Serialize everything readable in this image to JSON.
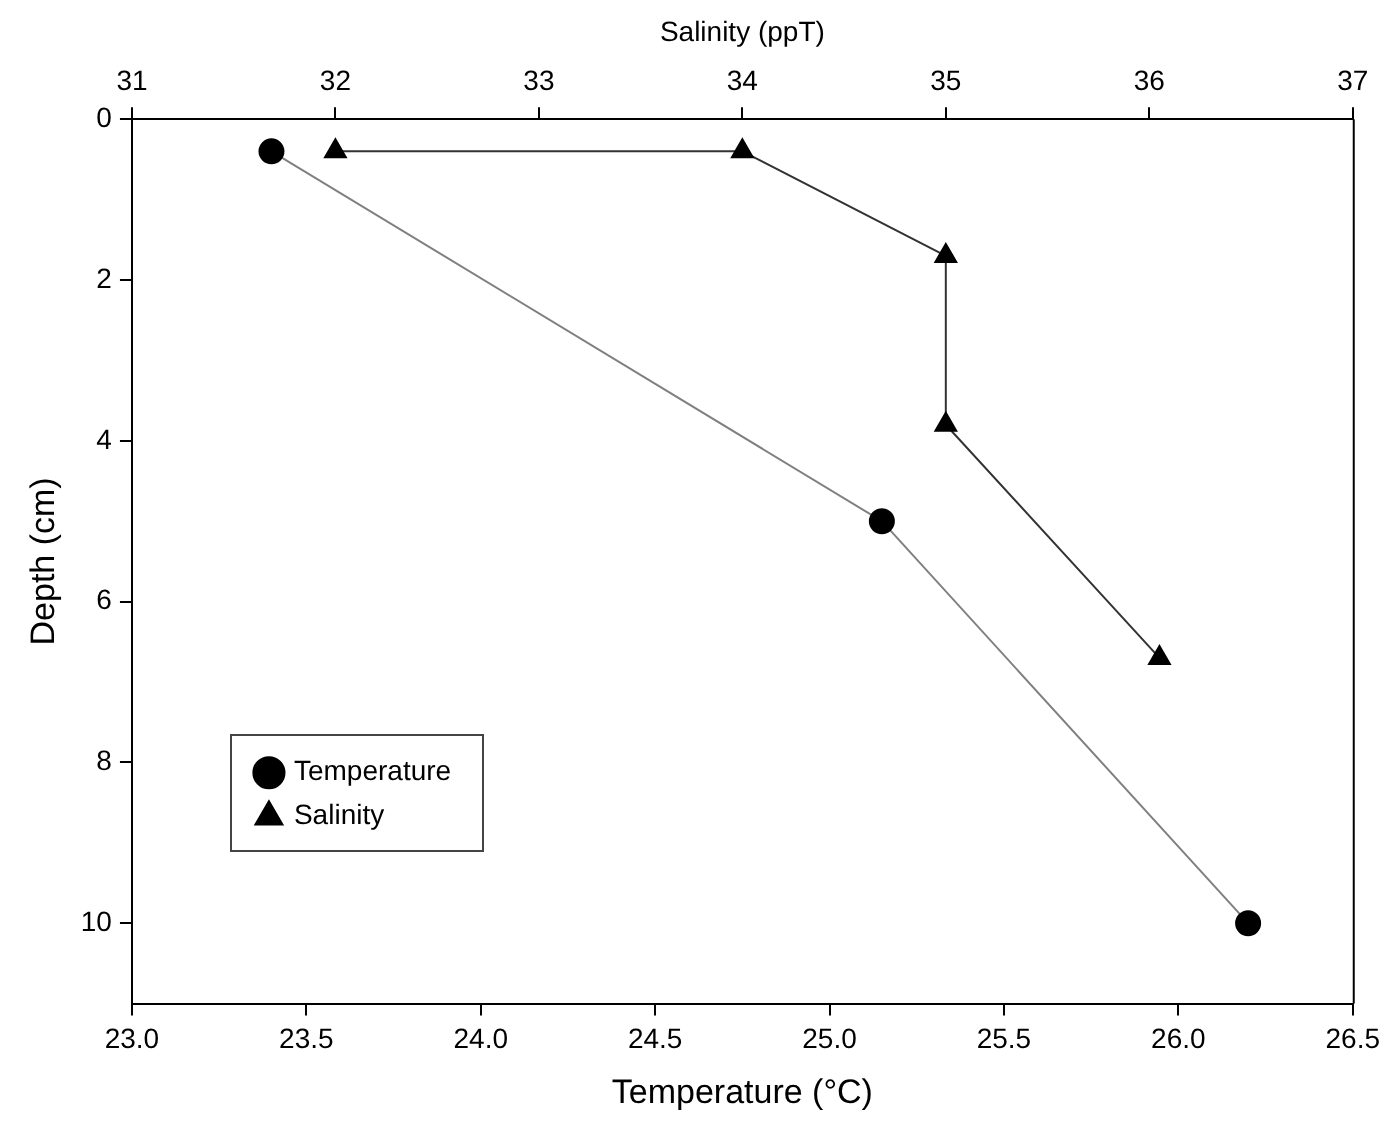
{
  "chart_data": {
    "type": "line",
    "xlabel": "Temperature (°C)",
    "x2label": "Salinity (ppT)",
    "ylabel": "Depth (cm)",
    "xlim": [
      23.0,
      26.5
    ],
    "xticks": [
      {
        "value": 23.0,
        "label": "23.0"
      },
      {
        "value": 23.5,
        "label": "23.5"
      },
      {
        "value": 24.0,
        "label": "24.0"
      },
      {
        "value": 24.5,
        "label": "24.5"
      },
      {
        "value": 25.0,
        "label": "25.0"
      },
      {
        "value": 25.5,
        "label": "25.5"
      },
      {
        "value": 26.0,
        "label": "26.0"
      },
      {
        "value": 26.5,
        "label": "26.5"
      }
    ],
    "x2lim": [
      31,
      37
    ],
    "x2ticks": [
      31,
      32,
      33,
      34,
      35,
      36,
      37
    ],
    "ylim": [
      11,
      0
    ],
    "yticks": [
      0,
      2,
      4,
      6,
      8,
      10
    ],
    "grid": false,
    "legend": "bottom left",
    "line_style": "solid",
    "series": [
      {
        "name": "Temperature",
        "color": "#808080",
        "colors": [
          "#000000",
          "#000000",
          "#000000"
        ],
        "marker": "circle",
        "x": [
          23.4,
          25.15,
          26.2
        ],
        "values": [
          0.4,
          5.0,
          10.0
        ]
      },
      {
        "name": "Salinity",
        "color": "#333333",
        "colors": [
          "#000000",
          "#000000",
          "#000000",
          "#000000",
          "#000000"
        ],
        "marker": "triangle",
        "axis": "x2",
        "x": [
          32,
          34,
          35,
          35,
          36.05
        ],
        "values": [
          0.4,
          0.4,
          1.7,
          3.8,
          6.7
        ]
      }
    ]
  }
}
